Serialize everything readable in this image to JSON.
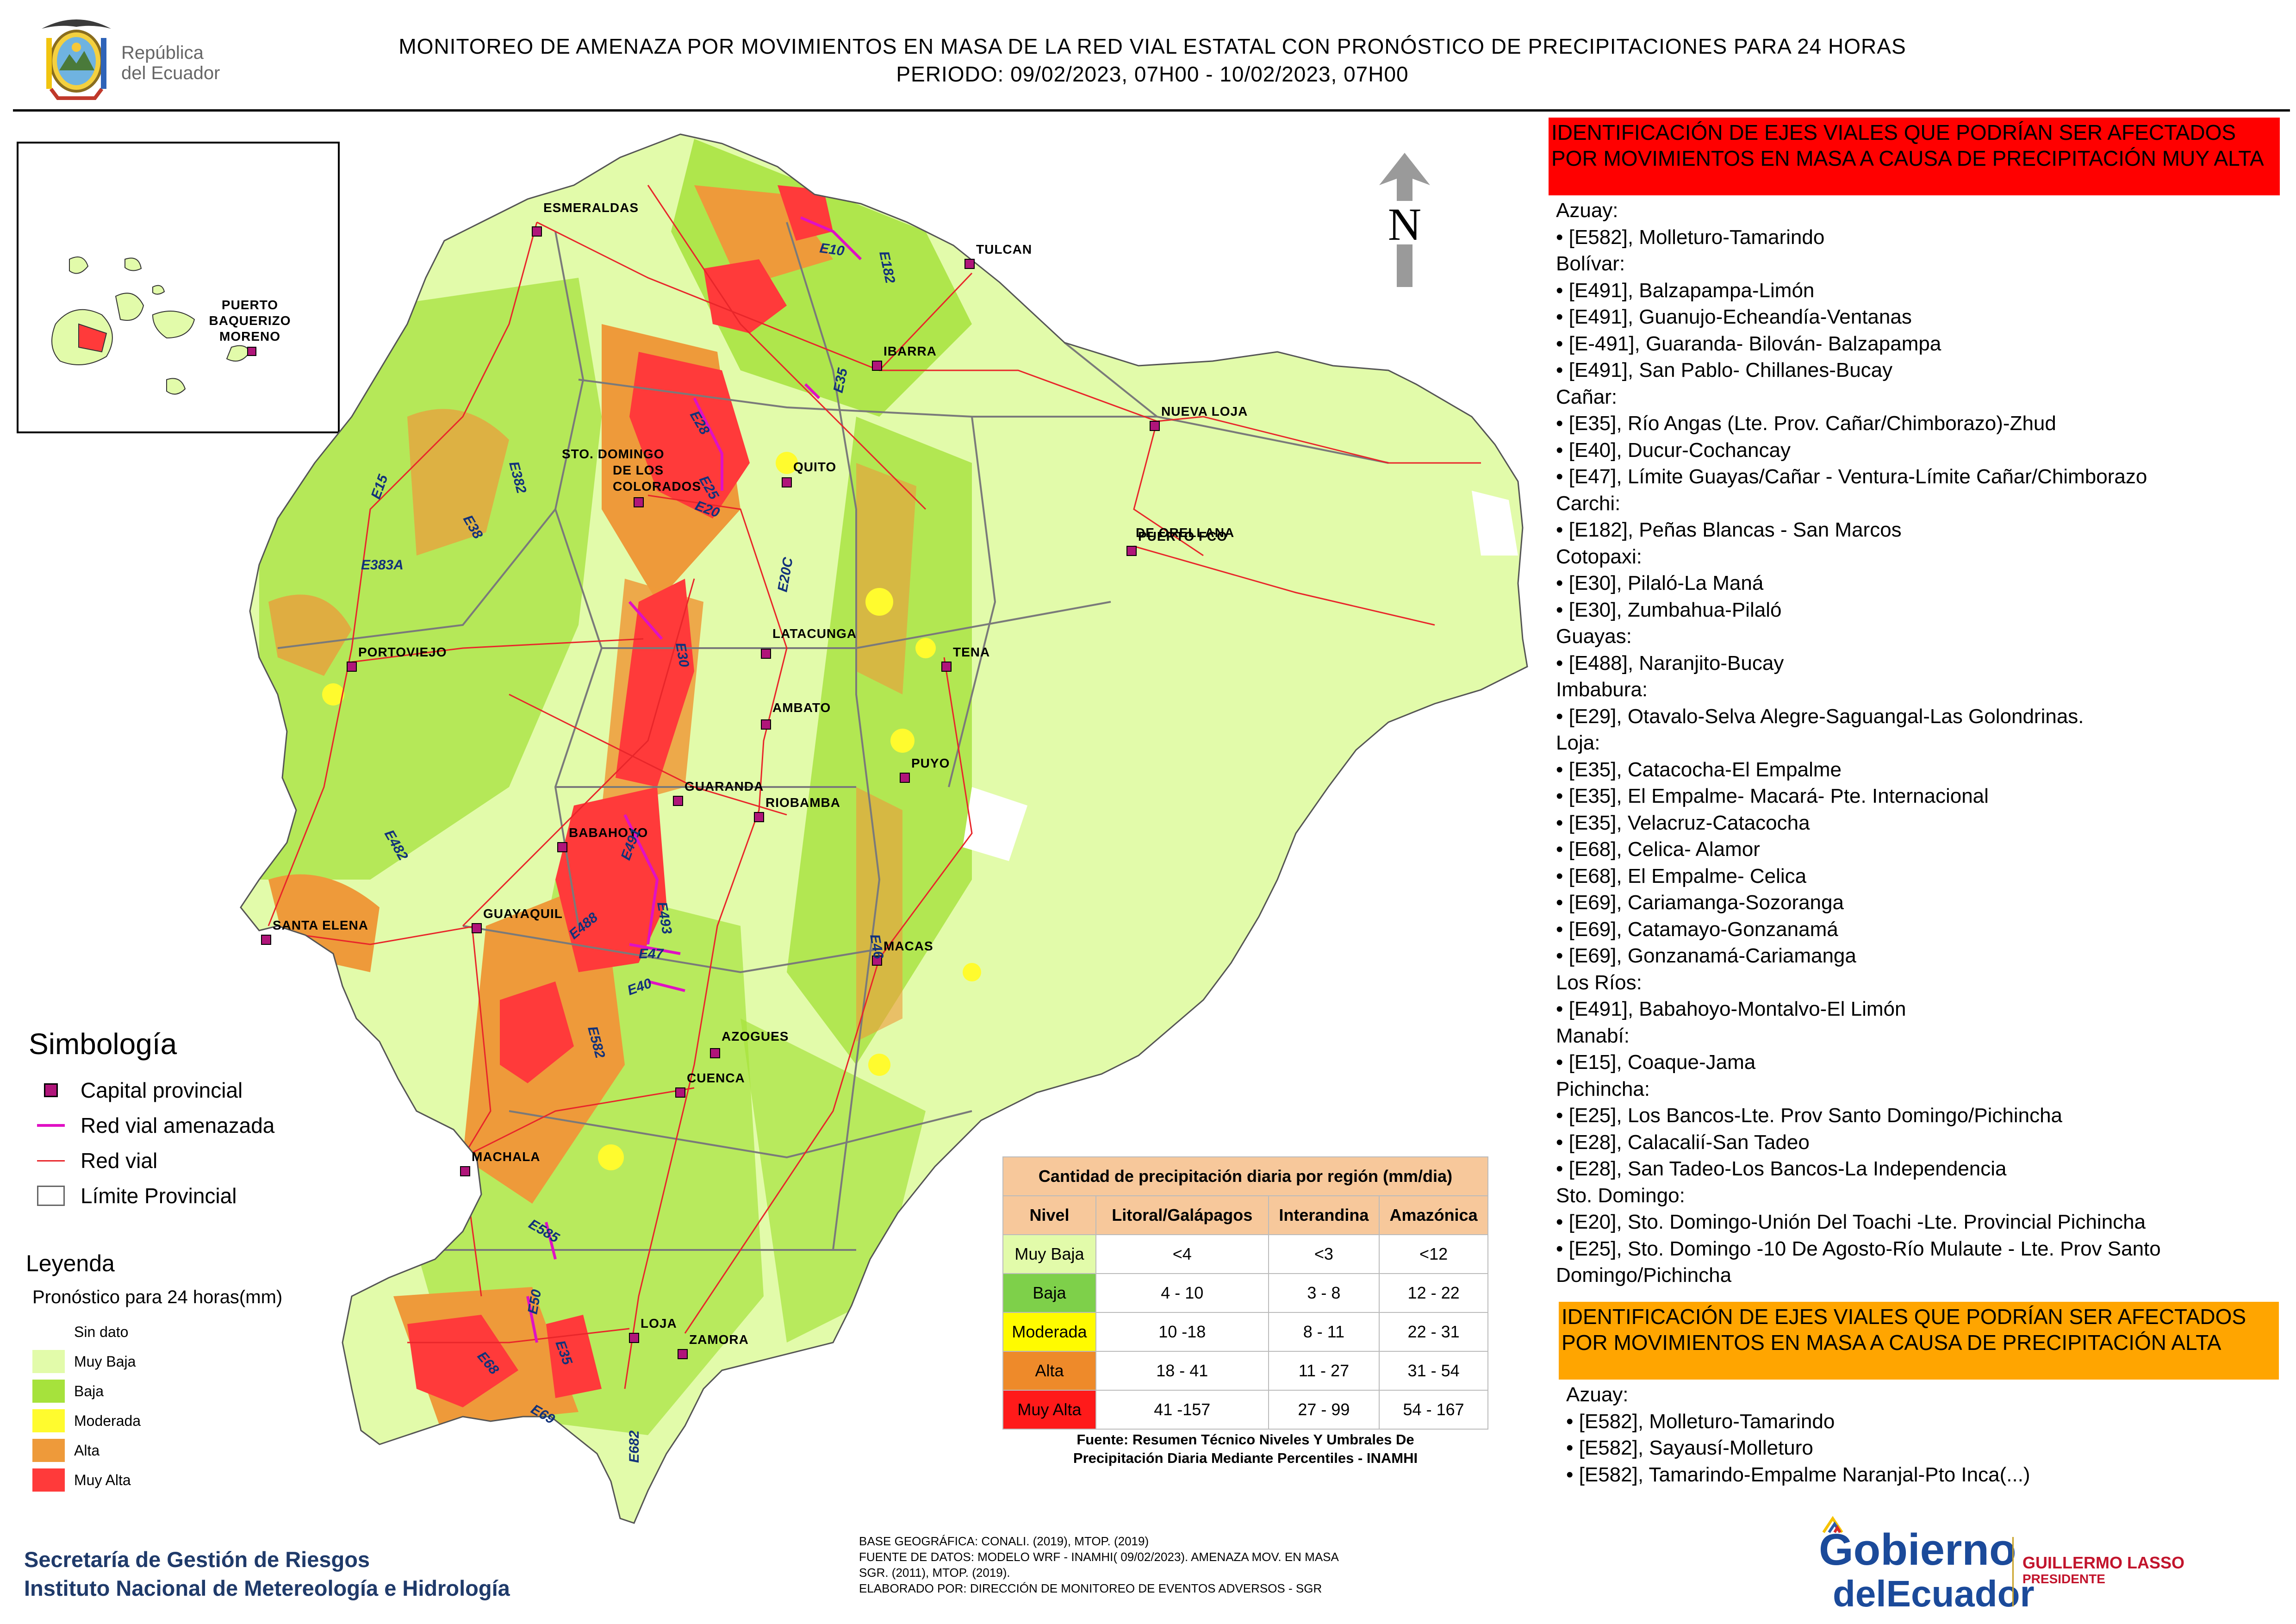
{
  "header": {
    "title_line1": "MONITOREO DE AMENAZA POR MOVIMIENTOS EN MASA DE LA RED VIAL  ESTATAL  CON PRONÓSTICO  DE  PRECIPITACIONES PARA 24 HORAS",
    "title_line2": "PERIODO: 09/02/2023, 07H00 - 10/02/2023, 07H00",
    "republica": [
      "República",
      "del Ecuador"
    ]
  },
  "colors": {
    "muy_baja": "#e2fbaa",
    "baja": "#a6e23c",
    "moderada": "#fffb2e",
    "alta": "#ee9a3a",
    "muy_alta": "#ff3a3a",
    "road": "#e8262a",
    "road_threatened": "#e010c4",
    "boundary": "#7a7a7a",
    "capital_fill": "#b0157a"
  },
  "map": {
    "north_label": "N",
    "inset_labels": [
      "PUERTO",
      "BAQUERIZO",
      "MORENO"
    ],
    "capitals": [
      {
        "name": "ESMERALDAS"
      },
      {
        "name": "TULCAN"
      },
      {
        "name": "IBARRA"
      },
      {
        "name": "NUEVA LOJA"
      },
      {
        "name": "QUITO"
      },
      {
        "name": "STO. DOMINGO"
      },
      {
        "name": "DE LOS"
      },
      {
        "name": "COLORADOS"
      },
      {
        "name": "PUERTO FCO"
      },
      {
        "name": "DE ORELLANA"
      },
      {
        "name": "PORTOVIEJO"
      },
      {
        "name": "LATACUNGA"
      },
      {
        "name": "TENA"
      },
      {
        "name": "AMBATO"
      },
      {
        "name": "PUYO"
      },
      {
        "name": "GUARANDA"
      },
      {
        "name": "RIOBAMBA"
      },
      {
        "name": "BABAHOYO"
      },
      {
        "name": "SANTA ELENA"
      },
      {
        "name": "GUAYAQUIL"
      },
      {
        "name": "MACAS"
      },
      {
        "name": "AZOGUES"
      },
      {
        "name": "CUENCA"
      },
      {
        "name": "MACHALA"
      },
      {
        "name": "LOJA"
      },
      {
        "name": "ZAMORA"
      }
    ],
    "road_codes": [
      "E10",
      "E182",
      "E28",
      "E35",
      "E382",
      "E25",
      "E20",
      "E15",
      "E38",
      "E383A",
      "E20C",
      "E30",
      "E482",
      "E491",
      "E493",
      "E488",
      "E47",
      "E40",
      "E46",
      "E582",
      "E585",
      "E50",
      "E35",
      "E68",
      "E69",
      "E682"
    ]
  },
  "simbologia": {
    "title": "Simbología",
    "items": [
      "Capital provincial",
      "Red vial amenazada",
      "Red vial",
      "Límite Provincial"
    ]
  },
  "leyenda": {
    "title": "Leyenda",
    "subtitle": "Pronóstico para 24 horas(mm)",
    "items": [
      "Sin dato",
      "Muy Baja",
      "Baja",
      "Moderada",
      "Alta",
      "Muy Alta"
    ]
  },
  "precip_table": {
    "title": "Cantidad de precipitación diaria por región (mm/dia)",
    "headers": [
      "Nivel",
      "Litoral/Galápagos",
      "Interandina",
      "Amazónica"
    ],
    "rows": [
      {
        "nivel": "Muy Baja",
        "litoral": "<4",
        "interandina": "<3",
        "amazonica": "<12"
      },
      {
        "nivel": "Baja",
        "litoral": "4 - 10",
        "interandina": "3 - 8",
        "amazonica": "12 - 22"
      },
      {
        "nivel": "Moderada",
        "litoral": "10 -18",
        "interandina": "8 - 11",
        "amazonica": "22 - 31"
      },
      {
        "nivel": "Alta",
        "litoral": "18 - 41",
        "interandina": "11 - 27",
        "amazonica": "31 - 54"
      },
      {
        "nivel": "Muy Alta",
        "litoral": "41 -157",
        "interandina": "27 - 99",
        "amazonica": "54 - 167"
      }
    ],
    "source_line1": "Fuente: Resumen Técnico Niveles Y Umbrales De",
    "source_line2": "Precipitación Diaria Mediante Percentiles - INAMHI"
  },
  "red_banner": {
    "text": "IDENTIFICACIÓN DE EJES VIALES QUE PODRÍAN SER AFECTADOS POR MOVIMIENTOS EN MASA A CAUSA DE PRECIPITACIÓN MUY ALTA"
  },
  "red_list": [
    "Azuay:",
    "• [E582], Molleturo-Tamarindo",
    "Bolívar:",
    "• [E491], Balzapampa-Limón",
    "• [E491], Guanujo-Echeandía-Ventanas",
    "• [E-491], Guaranda- Bilován- Balzapampa",
    "• [E491], San Pablo- Chillanes-Bucay",
    "Cañar:",
    "• [E35], Río Angas (Lte. Prov. Cañar/Chimborazo)-Zhud",
    "• [E40], Ducur-Cochancay",
    "• [E47], Límite Guayas/Cañar - Ventura-Límite Cañar/Chimborazo",
    "Carchi:",
    "• [E182], Peñas Blancas - San Marcos",
    "Cotopaxi:",
    "• [E30], Pilaló-La Maná",
    "• [E30], Zumbahua-Pilaló",
    "Guayas:",
    "• [E488], Naranjito-Bucay",
    "Imbabura:",
    "• [E29], Otavalo-Selva Alegre-Saguangal-Las Golondrinas.",
    "Loja:",
    "• [E35], Catacocha-El Empalme",
    "• [E35], El Empalme- Macará- Pte. Internacional",
    "• [E35], Velacruz-Catacocha",
    "• [E68], Celica- Alamor",
    "• [E68], El Empalme- Celica",
    "• [E69], Cariamanga-Sozoranga",
    "• [E69], Catamayo-Gonzanamá",
    "• [E69], Gonzanamá-Cariamanga",
    "Los Ríos:",
    "• [E491], Babahoyo-Montalvo-El Limón",
    "Manabí:",
    "• [E15], Coaque-Jama",
    "Pichincha:",
    "• [E25], Los Bancos-Lte. Prov Santo Domingo/Pichincha",
    "• [E28], Calacalií-San Tadeo",
    "• [E28], San Tadeo-Los Bancos-La Independencia",
    "Sto. Domingo:",
    "• [E20], Sto. Domingo-Unión Del Toachi -Lte. Provincial Pichincha",
    "• [E25], Sto. Domingo -10 De Agosto-Río Mulaute - Lte. Prov Santo",
    "Domingo/Pichincha"
  ],
  "orange_banner": {
    "text": "IDENTIFICACIÓN DE EJES VIALES QUE PODRÍAN SER AFECTADOS POR MOVIMIENTOS EN MASA A CAUSA DE PRECIPITACIÓN  ALTA"
  },
  "orange_list": [
    "Azuay:",
    " • [E582], Molleturo-Tamarindo",
    " • [E582], Sayausí-Molleturo",
    " • [E582], Tamarindo-Empalme Naranjal-Pto Inca(...)"
  ],
  "footer": {
    "org_line1": "Secretaría de Gestión de Riesgos",
    "org_line2": "Instituto Nacional de Metereología e Hidrología",
    "base_lines": [
      "BASE GEOGRÁFICA: CONALI. (2019), MTOP. (2019)",
      "FUENTE DE DATOS: MODELO WRF - INAMHI( 09/02/2023).  AMENAZA MOV. EN MASA",
      "SGR. (2011), MTOP. (2019).",
      "ELABORADO POR: DIRECCIÓN DE MONITOREO DE EVENTOS ADVERSOS - SGR"
    ],
    "gobierno": "Gobierno",
    "del_ecuador": "delEcuador",
    "president_name": "GUILLERMO LASSO",
    "president_title": "PRESIDENTE"
  }
}
